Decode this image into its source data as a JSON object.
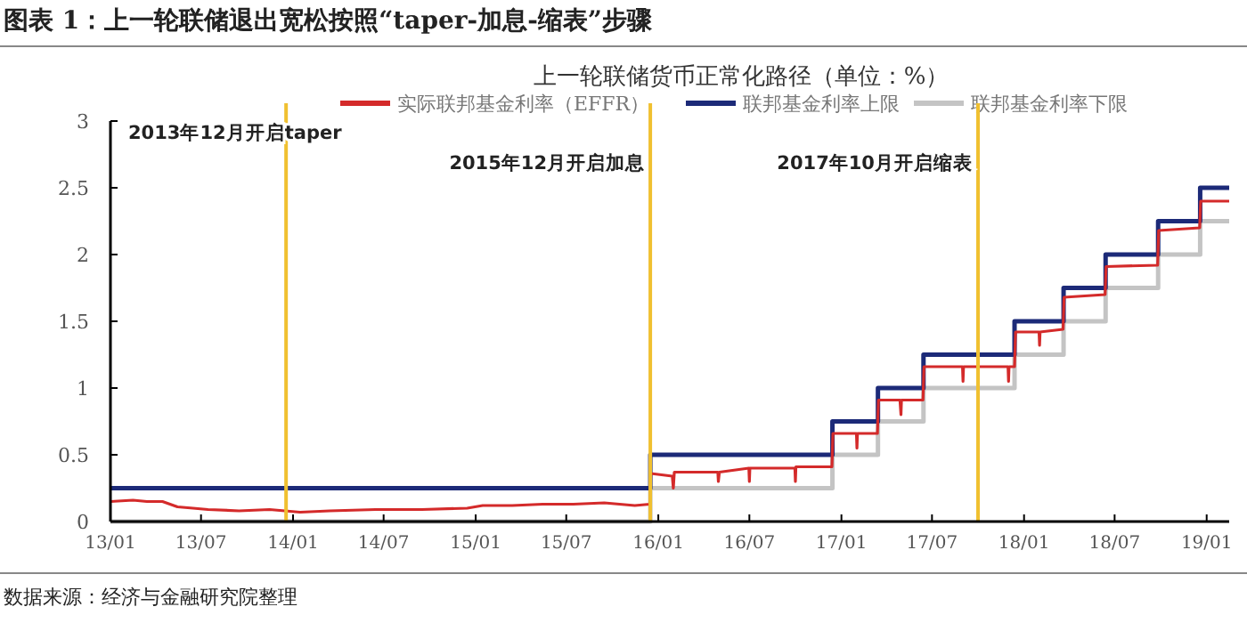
{
  "chart_data": {
    "type": "line",
    "title": "图表 1：上一轮联储退出宽松按照“taper-加息-缩表”步骤",
    "subtitle": "上一轮联储货币正常化路径（单位：%）",
    "annotations": [
      "数据来源：经济与金融研究院整理"
    ],
    "series": [
      {
        "name": "实际联邦基金利率（EFFR）",
        "color": "#d42a2a",
        "x": [
          "2013-01-01",
          "2013-02-15",
          "2013-03-15",
          "2013-04-15",
          "2013-05-15",
          "2013-06-15",
          "2013-07-15",
          "2013-09-15",
          "2013-11-15",
          "2014-01-15",
          "2014-03-15",
          "2014-06-15",
          "2014-09-15",
          "2014-12-15",
          "2015-01-15",
          "2015-03-15",
          "2015-05-15",
          "2015-07-15",
          "2015-09-15",
          "2015-11-15",
          "2015-12-15",
          "2015-12-17",
          "2016-01-29",
          "2016-01-31",
          "2016-02-02",
          "2016-04-29",
          "2016-04-30",
          "2016-05-02",
          "2016-06-30",
          "2016-07-01",
          "2016-07-02",
          "2016-09-30",
          "2016-10-01",
          "2016-10-02",
          "2016-12-13",
          "2016-12-15",
          "2017-01-31",
          "2017-02-01",
          "2017-02-02",
          "2017-03-14",
          "2017-03-16",
          "2017-04-28",
          "2017-04-30",
          "2017-05-01",
          "2017-06-13",
          "2017-06-15",
          "2017-08-31",
          "2017-09-01",
          "2017-09-02",
          "2017-11-30",
          "2017-12-01",
          "2017-12-02",
          "2017-12-13",
          "2017-12-15",
          "2018-01-31",
          "2018-02-01",
          "2018-02-02",
          "2018-03-20",
          "2018-03-22",
          "2018-06-12",
          "2018-06-14",
          "2018-09-25",
          "2018-09-27",
          "2018-12-18",
          "2018-12-20",
          "2019-02-15"
        ],
        "values": [
          0.15,
          0.16,
          0.15,
          0.15,
          0.11,
          0.1,
          0.09,
          0.08,
          0.09,
          0.07,
          0.08,
          0.09,
          0.09,
          0.1,
          0.12,
          0.12,
          0.13,
          0.13,
          0.14,
          0.12,
          0.13,
          0.36,
          0.34,
          0.25,
          0.37,
          0.37,
          0.3,
          0.37,
          0.4,
          0.3,
          0.4,
          0.4,
          0.3,
          0.41,
          0.41,
          0.66,
          0.66,
          0.55,
          0.66,
          0.66,
          0.91,
          0.91,
          0.8,
          0.91,
          0.91,
          1.16,
          1.16,
          1.05,
          1.16,
          1.16,
          1.05,
          1.16,
          1.16,
          1.42,
          1.42,
          1.32,
          1.42,
          1.44,
          1.68,
          1.7,
          1.91,
          1.92,
          2.18,
          2.2,
          2.4,
          2.4
        ]
      },
      {
        "name": "联邦基金利率上限",
        "color": "#1c2a78",
        "type": "step",
        "x": [
          "2013-01-01",
          "2015-12-16",
          "2016-12-14",
          "2017-03-15",
          "2017-06-14",
          "2017-12-13",
          "2018-03-21",
          "2018-06-13",
          "2018-09-26",
          "2018-12-19",
          "2019-02-15"
        ],
        "values": [
          0.25,
          0.5,
          0.75,
          1,
          1.25,
          1.5,
          1.75,
          2,
          2.25,
          2.5,
          2.5
        ]
      },
      {
        "name": "联邦基金利率下限",
        "color": "#c4c4c4",
        "type": "step",
        "x": [
          "2013-01-01",
          "2015-12-16",
          "2016-12-14",
          "2017-03-15",
          "2017-06-14",
          "2017-12-13",
          "2018-03-21",
          "2018-06-13",
          "2018-09-26",
          "2018-12-19",
          "2019-02-15"
        ],
        "values": [
          0,
          0.25,
          0.5,
          0.75,
          1,
          1.25,
          1.5,
          1.75,
          2,
          2.25,
          2.25
        ]
      }
    ],
    "xlim": [
      "2013-01-01",
      "2019-02-15"
    ],
    "xticks": [
      {
        "value": "2013-01-01",
        "label": "13/01"
      },
      {
        "value": "2013-07-01",
        "label": "13/07"
      },
      {
        "value": "2014-01-01",
        "label": "14/01"
      },
      {
        "value": "2014-07-01",
        "label": "14/07"
      },
      {
        "value": "2015-01-01",
        "label": "15/01"
      },
      {
        "value": "2015-07-01",
        "label": "15/07"
      },
      {
        "value": "2016-01-01",
        "label": "16/01"
      },
      {
        "value": "2016-07-01",
        "label": "16/07"
      },
      {
        "value": "2017-01-01",
        "label": "17/01"
      },
      {
        "value": "2017-07-01",
        "label": "17/07"
      },
      {
        "value": "2018-01-01",
        "label": "18/01"
      },
      {
        "value": "2018-07-01",
        "label": "18/07"
      },
      {
        "value": "2019-01-01",
        "label": "19/01"
      }
    ],
    "ylim": [
      0,
      3
    ],
    "yticks": [
      0,
      0.5,
      1,
      1.5,
      2,
      2.5,
      3
    ],
    "ref_lines": [
      {
        "axis": "x",
        "value": "2013-12-18",
        "label": "2013年12月开启taper",
        "color": "#f0c030"
      },
      {
        "axis": "x",
        "value": "2015-12-16",
        "label": "2015年12月开启加息",
        "color": "#f0c030"
      },
      {
        "axis": "x",
        "value": "2017-10-01",
        "label": "2017年10月开启缩表",
        "color": "#f0c030"
      }
    ],
    "legend": "top",
    "grid": false,
    "line_style": "solid",
    "marker": "none"
  }
}
